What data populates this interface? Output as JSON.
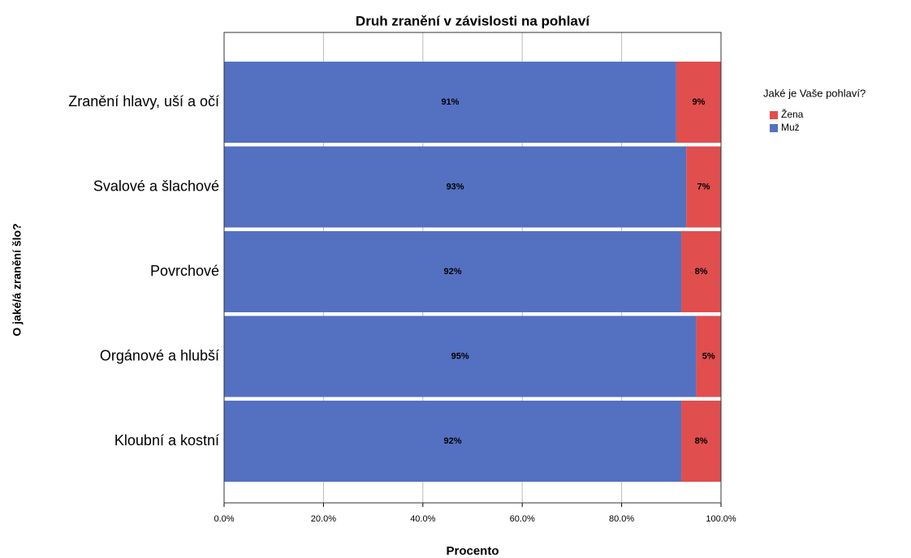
{
  "chart_data": {
    "type": "stacked_barh",
    "title": "Druh zranění v závislosti na pohlaví",
    "x_label": "Procento",
    "y_label": "O jaké/á zranění šlo?",
    "legend_title": "Jaké je Vaše pohlaví?",
    "legend_position": "right",
    "categories": [
      "Zranění hlavy, uší a očí",
      "Svalové a šlachové",
      "Povrchové",
      "Orgánové a hlubší",
      "Kloubní a kostní"
    ],
    "series": [
      {
        "name": "Muž",
        "color": "#5470c1",
        "values": [
          91,
          93,
          92,
          95,
          92
        ],
        "value_labels": [
          "91%",
          "93%",
          "92%",
          "95%",
          "92%"
        ]
      },
      {
        "name": "Žena",
        "color": "#e04e4e",
        "values": [
          9,
          7,
          8,
          5,
          8
        ],
        "value_labels": [
          "9%",
          "7%",
          "8%",
          "5%",
          "8%"
        ]
      }
    ],
    "xlim": [
      0,
      100
    ],
    "xticks": [
      {
        "value": 0,
        "label": "0.0%"
      },
      {
        "value": 20,
        "label": "20.0%"
      },
      {
        "value": 40,
        "label": "40.0%"
      },
      {
        "value": 60,
        "label": "60.0%"
      },
      {
        "value": 80,
        "label": "80.0%"
      },
      {
        "value": 100,
        "label": "100.0%"
      }
    ],
    "grid": true
  }
}
